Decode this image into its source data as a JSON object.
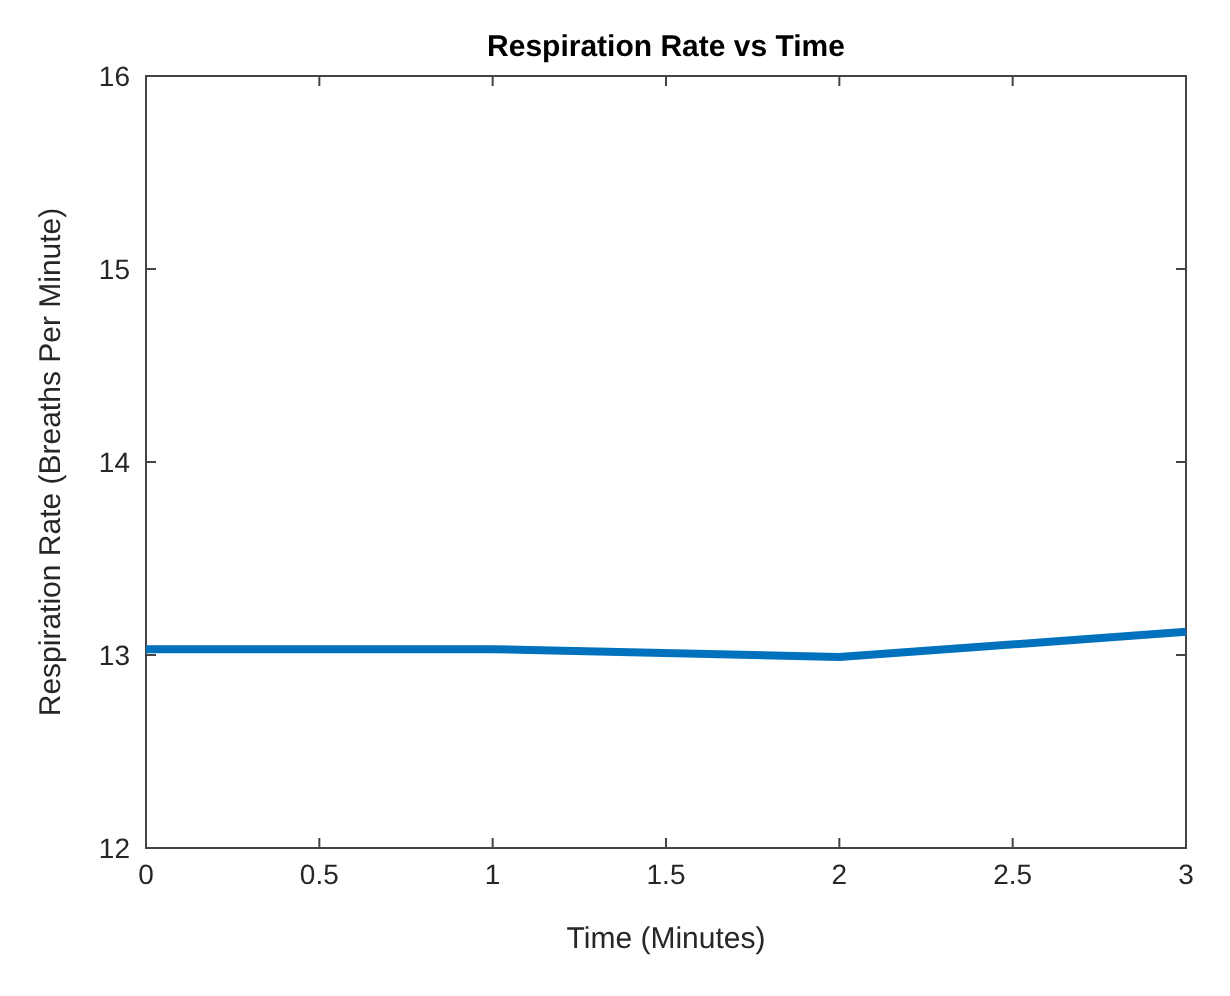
{
  "chart_data": {
    "type": "line",
    "title": "Respiration Rate vs Time",
    "xlabel": "Time (Minutes)",
    "ylabel": "Respiration Rate  (Breaths Per Minute)",
    "x": [
      0,
      1,
      2,
      3
    ],
    "series": [
      {
        "color": "#0072bd",
        "values": [
          13.03,
          13.03,
          12.99,
          13.12
        ]
      }
    ],
    "xlim": [
      0,
      3
    ],
    "ylim": [
      12,
      16
    ],
    "xticks": [
      0,
      0.5,
      1,
      1.5,
      2,
      2.5,
      3
    ],
    "yticks": [
      12,
      13,
      14,
      15,
      16
    ],
    "grid": false
  }
}
